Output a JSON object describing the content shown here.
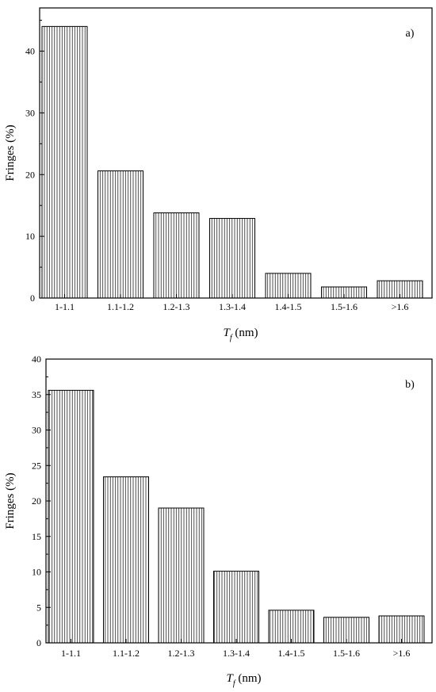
{
  "chart_data": [
    {
      "type": "bar",
      "panel_label": "a)",
      "categories": [
        "1-1.1",
        "1.1-1.2",
        "1.2-1.3",
        "1.3-1.4",
        "1.4-1.5",
        "1.5-1.6",
        ">1.6"
      ],
      "values": [
        44,
        20.6,
        13.8,
        12.9,
        4.0,
        1.8,
        2.8
      ],
      "ylabel": "Fringes (%)",
      "xlabel": {
        "main": "T",
        "sub": "f",
        "unit": " (nm)"
      },
      "ylim": [
        0,
        47
      ],
      "yticks": [
        0,
        10,
        20,
        30,
        40
      ],
      "bar_fill": "vertical-hatch"
    },
    {
      "type": "bar",
      "panel_label": "b)",
      "categories": [
        "1-1.1",
        "1.1-1.2",
        "1.2-1.3",
        "1.3-1.4",
        "1.4-1.5",
        "1.5-1.6",
        ">1.6"
      ],
      "values": [
        35.6,
        23.4,
        19.0,
        10.1,
        4.6,
        3.6,
        3.8
      ],
      "ylabel": "Fringes (%)",
      "xlabel": {
        "main": "T",
        "sub": "f",
        "unit": " (nm)"
      },
      "ylim": [
        0,
        40
      ],
      "yticks": [
        0,
        5,
        10,
        15,
        20,
        25,
        30,
        35,
        40
      ],
      "bar_fill": "vertical-hatch"
    }
  ]
}
